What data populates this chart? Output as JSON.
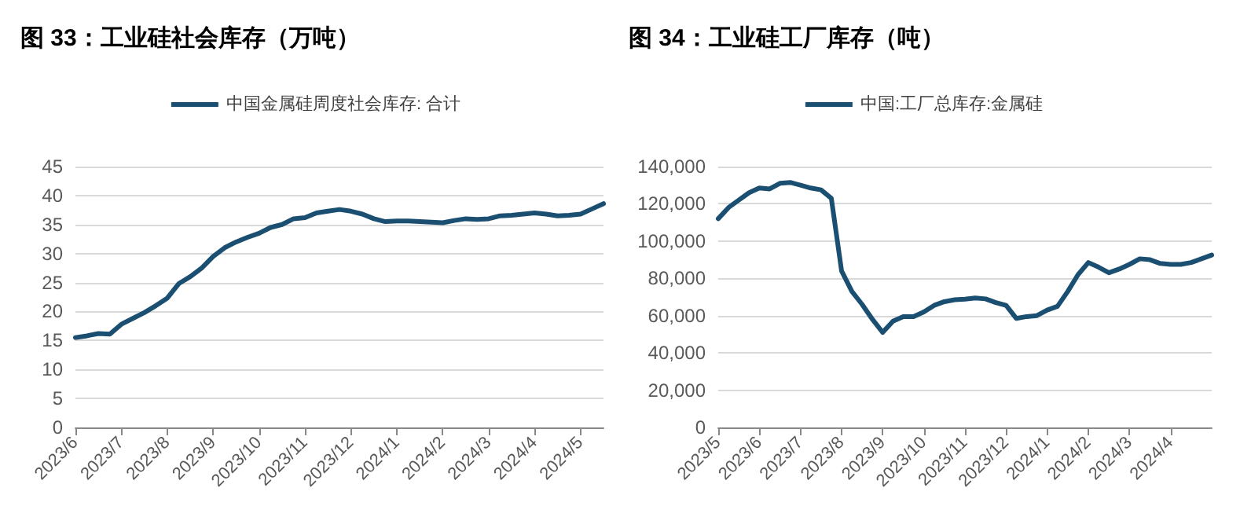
{
  "chart_data": [
    {
      "type": "line",
      "title": "图 33：工业硅社会库存（万吨）",
      "categories": [
        "2023/6",
        null,
        null,
        null,
        "2023/7",
        null,
        null,
        null,
        "2023/8",
        null,
        null,
        null,
        "2023/9",
        null,
        null,
        null,
        "2023/10",
        null,
        null,
        null,
        "2023/11",
        null,
        null,
        null,
        "2023/12",
        null,
        null,
        null,
        "2024/1",
        null,
        null,
        null,
        "2024/2",
        null,
        null,
        null,
        "2024/3",
        null,
        null,
        null,
        "2024/4",
        null,
        null,
        null,
        "2024/5",
        null,
        null
      ],
      "series": [
        {
          "name": "中国金属硅周度社会库存: 合计",
          "color": "#1b4f72",
          "values": [
            15.5,
            15.8,
            16.2,
            16.1,
            17.8,
            18.8,
            19.8,
            21,
            22.3,
            24.8,
            26,
            27.5,
            29.5,
            31,
            32,
            32.8,
            33.5,
            34.5,
            35,
            36,
            36.2,
            37,
            37.3,
            37.6,
            37.3,
            36.8,
            36,
            35.5,
            35.6,
            35.6,
            35.5,
            35.4,
            35.3,
            35.7,
            36,
            35.9,
            36,
            36.5,
            36.6,
            36.8,
            37,
            36.8,
            36.5,
            36.6,
            36.8,
            37.7,
            38.6
          ]
        }
      ],
      "ylim": [
        0,
        45
      ],
      "yticks": [
        0,
        5,
        10,
        15,
        20,
        25,
        30,
        35,
        40,
        45
      ],
      "grid": "y",
      "legend": "top",
      "marker": "none",
      "line_style": "solid"
    },
    {
      "type": "line",
      "title": "图 34：工业硅工厂库存（吨）",
      "categories": [
        "2023/5",
        null,
        null,
        null,
        "2023/6",
        null,
        null,
        null,
        "2023/7",
        null,
        null,
        null,
        "2023/8",
        null,
        null,
        null,
        "2023/9",
        null,
        null,
        null,
        "2023/10",
        null,
        null,
        null,
        "2023/11",
        null,
        null,
        null,
        "2023/12",
        null,
        null,
        null,
        "2024/1",
        null,
        null,
        null,
        "2024/2",
        null,
        null,
        null,
        "2024/3",
        null,
        null,
        null,
        "2024/4",
        null,
        null,
        null,
        null
      ],
      "series": [
        {
          "name": "中国:工厂总库存:金属硅",
          "color": "#1b4f72",
          "values": [
            112000,
            118000,
            122000,
            126000,
            128500,
            128000,
            131000,
            131500,
            130000,
            128500,
            127500,
            123000,
            84000,
            73000,
            66000,
            58000,
            51000,
            57000,
            59500,
            59500,
            62000,
            65500,
            67500,
            68500,
            68800,
            69500,
            69000,
            67000,
            65500,
            58500,
            59500,
            60000,
            63000,
            65000,
            73000,
            82000,
            88500,
            86000,
            83000,
            85000,
            87500,
            90500,
            90000,
            88000,
            87500,
            87500,
            88500,
            90500,
            92500
          ]
        }
      ],
      "ylim": [
        0,
        140000
      ],
      "yticks": [
        0,
        {
          "value": 20000,
          "label": "20,000"
        },
        {
          "value": 40000,
          "label": "40,000"
        },
        {
          "value": 60000,
          "label": "60,000"
        },
        {
          "value": 80000,
          "label": "80,000"
        },
        {
          "value": 100000,
          "label": "100,000"
        },
        {
          "value": 120000,
          "label": "120,000"
        },
        {
          "value": 140000,
          "label": "140,000"
        }
      ],
      "grid": "y",
      "legend": "top",
      "marker": "none",
      "line_style": "solid"
    }
  ]
}
